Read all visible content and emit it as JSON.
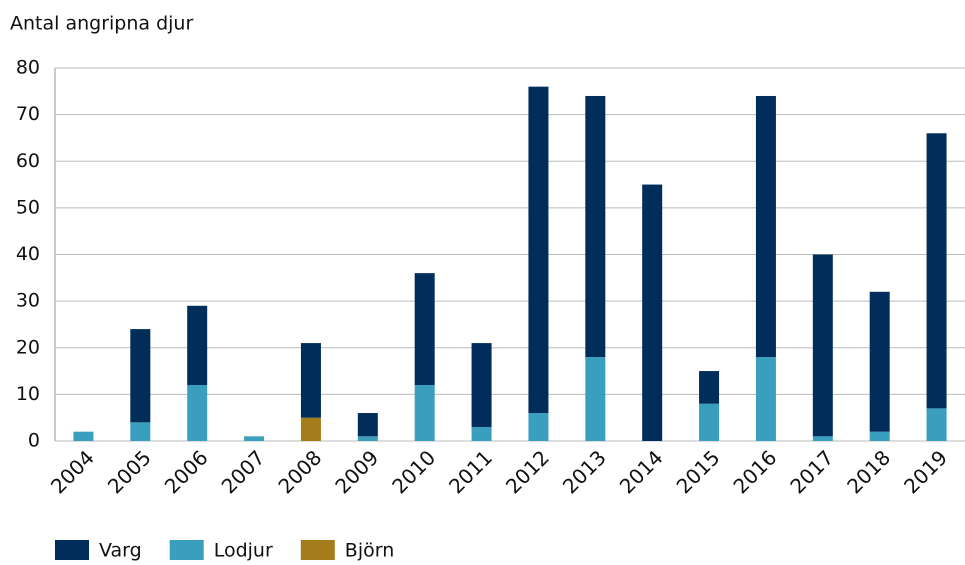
{
  "chart_data": {
    "type": "stacked_bar",
    "y_label": "Antal angripna djur",
    "categories": [
      "2004",
      "2005",
      "2006",
      "2007",
      "2008",
      "2009",
      "2010",
      "2011",
      "2012",
      "2013",
      "2014",
      "2015",
      "2016",
      "2017",
      "2018",
      "2019"
    ],
    "series": [
      {
        "name": "Varg",
        "color": "#002d5a",
        "values": [
          0,
          20,
          17,
          0,
          16,
          5,
          24,
          18,
          70,
          56,
          55,
          7,
          56,
          39,
          30,
          59
        ]
      },
      {
        "name": "Lodjur",
        "color": "#3a9fbf",
        "values": [
          2,
          4,
          12,
          1,
          0,
          1,
          12,
          3,
          6,
          18,
          0,
          8,
          18,
          1,
          2,
          7
        ]
      },
      {
        "name": "Björn",
        "color": "#a57c1b",
        "values": [
          0,
          0,
          0,
          0,
          5,
          0,
          0,
          0,
          0,
          0,
          0,
          0,
          0,
          0,
          0,
          0
        ]
      }
    ],
    "ylim": [
      0,
      80
    ],
    "yticks": [
      0,
      10,
      20,
      30,
      40,
      50,
      60,
      70,
      80
    ],
    "grid": true,
    "legend": "bottom"
  }
}
